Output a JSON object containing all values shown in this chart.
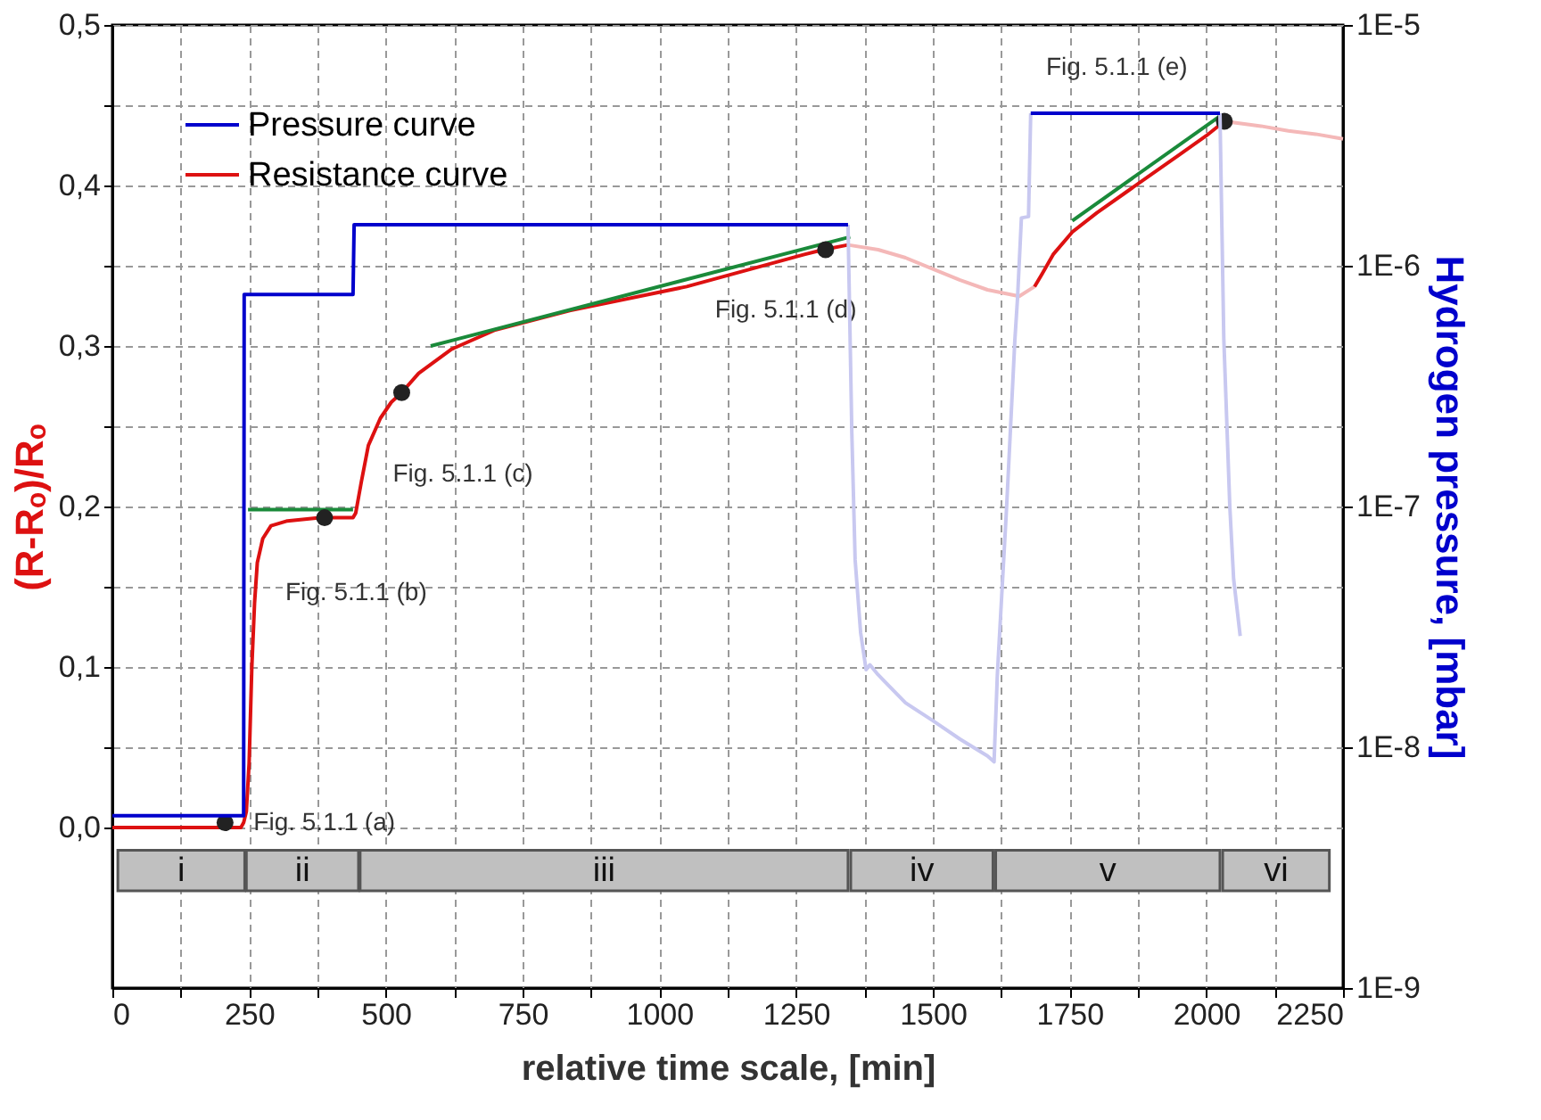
{
  "chart_data": {
    "type": "line",
    "xlabel": "relative time scale, [min]",
    "ylabel": "(R-Rₒ)/Rₒ",
    "y2label": "Hydrogen pressure, [mbar]",
    "xlim": [
      0,
      2250
    ],
    "xticks": [
      0,
      {
        "value": 125,
        "label": null
      },
      250,
      {
        "value": 375,
        "label": null
      },
      500,
      {
        "value": 625,
        "label": null
      },
      750,
      {
        "value": 875,
        "label": null
      },
      1000,
      {
        "value": 1125,
        "label": null
      },
      1250,
      {
        "value": 1375,
        "label": null
      },
      1500,
      {
        "value": 1625,
        "label": null
      },
      1750,
      {
        "value": 1875,
        "label": null
      },
      2000,
      {
        "value": 2125,
        "label": null
      },
      2250
    ],
    "ylim": [
      -0.1,
      0.5
    ],
    "yticks": [
      {
        "value": 0,
        "label": "0,0"
      },
      {
        "value": 0.05,
        "label": null
      },
      {
        "value": 0.1,
        "label": "0,1"
      },
      {
        "value": 0.15,
        "label": null
      },
      {
        "value": 0.2,
        "label": "0,2"
      },
      {
        "value": 0.25,
        "label": null
      },
      {
        "value": 0.3,
        "label": "0,3"
      },
      {
        "value": 0.35,
        "label": null
      },
      {
        "value": 0.4,
        "label": "0,4"
      },
      {
        "value": 0.45,
        "label": null
      },
      {
        "value": 0.5,
        "label": "0,5"
      }
    ],
    "y2lim": [
      1e-09,
      1e-05
    ],
    "y2ticks": [
      {
        "value": 1e-09,
        "label": "1E-9"
      },
      {
        "value": 1e-08,
        "label": "1E-8"
      },
      {
        "value": 1e-07,
        "label": "1E-7"
      },
      {
        "value": 1e-06,
        "label": "1E-6"
      },
      {
        "value": 1e-05,
        "label": "1E-5"
      }
    ],
    "log": "y2",
    "grid": true,
    "legend": "top left",
    "line_style": "solid",
    "series": [
      {
        "axis": "y2",
        "color": "#c8c8f0",
        "x": [
          1345,
          1352,
          1358,
          1368,
          1378,
          1385,
          1400,
          1450,
          1500,
          1550,
          1600,
          1612,
          1618,
          1635,
          1650,
          1655,
          1662,
          1675,
          1679,
          null,
          2025,
          2032,
          2043,
          2050,
          2062
        ],
        "values": [
          1.48e-06,
          2e-07,
          6e-08,
          3e-08,
          2.1e-08,
          2.2e-08,
          2e-08,
          1.53e-08,
          1.29e-08,
          1.08e-08,
          9.2e-09,
          8.7e-09,
          2e-08,
          1e-07,
          4.9e-07,
          7.4e-07,
          1.58e-06,
          1.6e-06,
          4.3e-06,
          null,
          4.3e-06,
          5e-07,
          1e-07,
          5e-08,
          2.9e-08
        ]
      },
      {
        "color": "#f4b8b8",
        "x": [
          1345,
          1400,
          1450,
          1500,
          1550,
          1600,
          1658,
          1686,
          null,
          2033,
          2100,
          2150,
          2200,
          2250
        ],
        "values": [
          0.363,
          0.36,
          0.355,
          0.348,
          0.341,
          0.335,
          0.331,
          0.337,
          null,
          0.44,
          0.437,
          0.434,
          0.432,
          0.429
        ]
      },
      {
        "axis": "y2",
        "name": "Pressure curve",
        "color": "#0000cc",
        "x": [
          0,
          240,
          241,
          440,
          442,
          1345,
          null,
          1679,
          2025
        ],
        "values": [
          5.2e-09,
          5.2e-09,
          7.6e-07,
          7.6e-07,
          1.48e-06,
          1.48e-06,
          null,
          4.3e-06,
          4.3e-06
        ]
      },
      {
        "name": "Resistance curve",
        "color": "#dd1111",
        "x": [
          0,
          235,
          240,
          245,
          250,
          255,
          260,
          265,
          275,
          290,
          320,
          380,
          440,
          445,
          455,
          468,
          490,
          510,
          529,
          560,
          620,
          700,
          836,
          1050,
          1265,
          1300,
          1345,
          null,
          1686,
          1700,
          1720,
          1755,
          1800,
          1850,
          1900,
          1950,
          2000,
          2033
        ],
        "values": [
          0,
          0,
          0.003,
          0.01,
          0.04,
          0.1,
          0.14,
          0.165,
          0.18,
          0.188,
          0.191,
          0.193,
          0.193,
          0.196,
          0.215,
          0.238,
          0.255,
          0.265,
          0.271,
          0.283,
          0.298,
          0.31,
          0.322,
          0.337,
          0.357,
          0.36,
          0.363,
          null,
          0.337,
          0.345,
          0.357,
          0.371,
          0.383,
          0.395,
          0.407,
          0.419,
          0.431,
          0.44
        ]
      },
      {
        "color": "#1a8a3a",
        "x": [
          248,
          440
        ],
        "values": [
          0.198,
          0.198
        ]
      },
      {
        "color": "#1a8a3a",
        "x": [
          582,
          1349
        ],
        "values": [
          0.3,
          0.368
        ]
      },
      {
        "color": "#1a8a3a",
        "x": [
          1755,
          2024
        ],
        "values": [
          0.378,
          0.443
        ]
      },
      {
        "type": "scatter",
        "marker": "circle",
        "color": "#222222",
        "x": [
          206,
          388,
          529,
          1304,
          2033
        ],
        "values": [
          0.003,
          0.193,
          0.271,
          0.36,
          0.44
        ]
      }
    ],
    "bands": [
      {
        "axis": "x",
        "from": 10,
        "to": 242,
        "label": "i",
        "color": "#c0c0c0"
      },
      {
        "axis": "x",
        "from": 245,
        "to": 450,
        "label": "ii",
        "color": "#c0c0c0"
      },
      {
        "axis": "x",
        "from": 453,
        "to": 1345,
        "label": "iii",
        "color": "#c0c0c0"
      },
      {
        "axis": "x",
        "from": 1350,
        "to": 1610,
        "label": "iv",
        "color": "#c0c0c0"
      },
      {
        "axis": "x",
        "from": 1615,
        "to": 2025,
        "label": "v",
        "color": "#c0c0c0"
      },
      {
        "axis": "x",
        "from": 2030,
        "to": 2225,
        "label": "vi",
        "color": "#c0c0c0"
      }
    ],
    "annotations": [
      {
        "text": "Fig. 5.1.1 (a)",
        "x": 206,
        "y": 0.003
      },
      {
        "text": "Fig. 5.1.1 (b)",
        "x": 388,
        "y": 0.193
      },
      {
        "text": "Fig. 5.1.1 (c)",
        "x": 529,
        "y": 0.271
      },
      {
        "text": "Fig. 5.1.1 (d)",
        "x": 1304,
        "y": 0.36
      },
      {
        "text": "Fig. 5.1.1 (e)",
        "x": 2033,
        "y": 0.44
      }
    ]
  }
}
